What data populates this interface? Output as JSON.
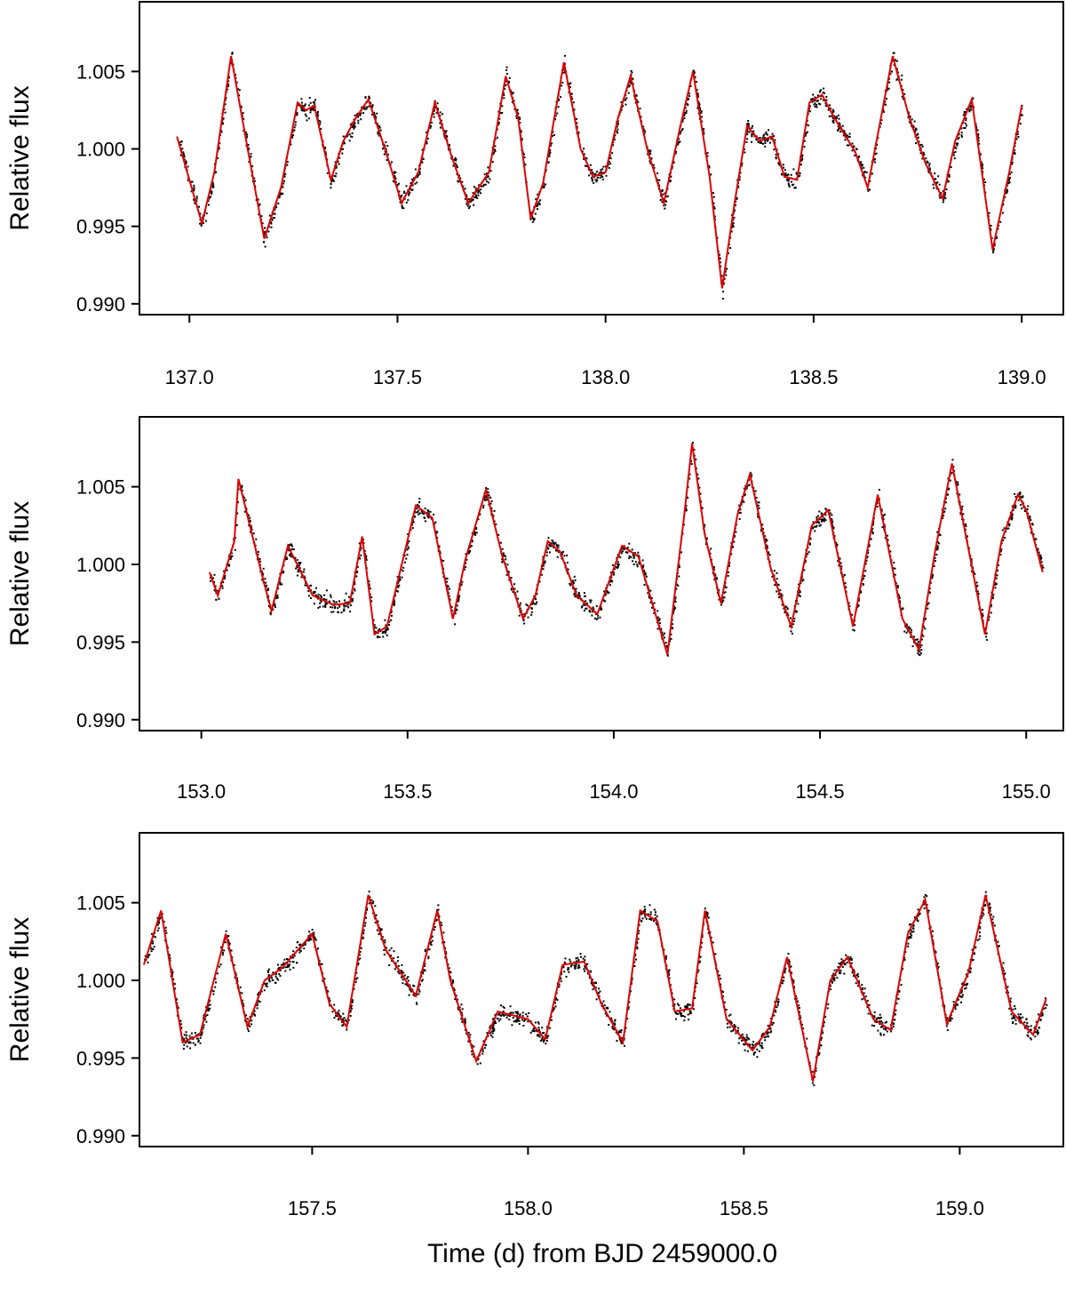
{
  "figure": {
    "xlabel": "Time (d) from BJD 2459000.0",
    "colors": {
      "points": "#000000",
      "model": "#e00000",
      "frame": "#000000"
    }
  },
  "chart_data": [
    {
      "type": "line",
      "ylabel": "Relative flux",
      "xlim": [
        136.88,
        139.1
      ],
      "ylim": [
        0.9893,
        1.0095
      ],
      "xticks": [
        137.0,
        137.5,
        138.0,
        138.5,
        139.0
      ],
      "xtick_labels": [
        "137.0",
        "137.5",
        "138.0",
        "138.5",
        "139.0"
      ],
      "yticks": [
        0.99,
        0.995,
        1.0,
        1.005
      ],
      "ytick_labels": [
        "0.990",
        "0.995",
        "1.000",
        "1.005"
      ],
      "series": [
        {
          "kind": "model",
          "x": [
            136.97,
            137.0,
            137.03,
            137.06,
            137.1,
            137.14,
            137.18,
            137.22,
            137.26,
            137.28,
            137.3,
            137.34,
            137.37,
            137.4,
            137.43,
            137.47,
            137.51,
            137.55,
            137.59,
            137.63,
            137.67,
            137.72,
            137.76,
            137.79,
            137.82,
            137.85,
            137.9,
            137.94,
            137.97,
            138.0,
            138.03,
            138.06,
            138.1,
            138.14,
            138.18,
            138.21,
            138.25,
            138.28,
            138.31,
            138.34,
            138.37,
            138.4,
            138.43,
            138.46,
            138.49,
            138.52,
            138.55,
            138.6,
            138.63,
            138.69,
            138.73,
            138.77,
            138.81,
            138.84,
            138.88,
            138.93,
            138.97,
            139.0
          ],
          "y": [
            1.0008,
            0.998,
            0.9952,
            0.9985,
            1.006,
            1.0,
            0.9942,
            0.9975,
            1.003,
            1.0025,
            1.0028,
            0.998,
            1.0005,
            1.002,
            1.0032,
            1.0,
            0.9965,
            0.9985,
            1.003,
            0.9995,
            0.9965,
            0.9985,
            1.0047,
            1.002,
            0.9955,
            0.9978,
            1.0056,
            1.0,
            0.9982,
            0.9985,
            1.002,
            1.0047,
            1.0,
            0.9965,
            1.0015,
            1.005,
            0.9982,
            0.991,
            0.9965,
            1.0015,
            1.0005,
            1.0008,
            0.9982,
            0.998,
            1.003,
            1.0035,
            1.002,
            0.9998,
            0.9975,
            1.006,
            1.002,
            0.999,
            0.9968,
            1.0005,
            1.0032,
            0.9935,
            0.9985,
            1.0028
          ]
        }
      ]
    },
    {
      "type": "line",
      "ylabel": "Relative flux",
      "xlim": [
        152.85,
        155.09
      ],
      "ylim": [
        0.9893,
        1.0095
      ],
      "xticks": [
        153.0,
        153.5,
        154.0,
        154.5,
        155.0
      ],
      "xtick_labels": [
        "153.0",
        "153.5",
        "154.0",
        "154.5",
        "155.0"
      ],
      "yticks": [
        0.99,
        0.995,
        1.0,
        1.005
      ],
      "ytick_labels": [
        "0.990",
        "0.995",
        "1.000",
        "1.005"
      ],
      "series": [
        {
          "kind": "model",
          "x": [
            153.02,
            153.04,
            153.08,
            153.09,
            153.15,
            153.17,
            153.21,
            153.27,
            153.32,
            153.36,
            153.39,
            153.42,
            153.45,
            153.52,
            153.56,
            153.61,
            153.64,
            153.69,
            153.73,
            153.78,
            153.81,
            153.84,
            153.87,
            153.91,
            153.96,
            154.02,
            154.06,
            154.13,
            154.17,
            154.19,
            154.22,
            154.26,
            154.3,
            154.33,
            154.38,
            154.43,
            154.48,
            154.52,
            154.58,
            154.64,
            154.7,
            154.74,
            154.78,
            154.82,
            154.86,
            154.9,
            154.94,
            154.98,
            155.0,
            155.04
          ],
          "y": [
            0.9995,
            0.998,
            1.0015,
            1.0055,
            0.999,
            0.997,
            1.0012,
            0.998,
            0.9974,
            0.9975,
            1.0018,
            0.9955,
            0.996,
            1.0038,
            1.003,
            0.9965,
            1.0003,
            1.0048,
            1.0005,
            0.9965,
            0.998,
            1.0015,
            1.0008,
            0.998,
            0.9968,
            1.0012,
            1.0005,
            0.9942,
            1.003,
            1.0078,
            1.002,
            0.9975,
            1.0032,
            1.0058,
            0.9998,
            0.996,
            1.0025,
            1.0035,
            0.996,
            1.0045,
            0.9965,
            0.9945,
            1.001,
            1.0065,
            1.001,
            0.9955,
            1.0015,
            1.0045,
            1.0035,
            0.9995
          ]
        }
      ]
    },
    {
      "type": "line",
      "ylabel": "Relative flux",
      "xlim": [
        157.1,
        159.24
      ],
      "ylim": [
        0.9893,
        1.0095
      ],
      "xticks": [
        157.5,
        158.0,
        158.5,
        159.0
      ],
      "xtick_labels": [
        "157.5",
        "158.0",
        "158.5",
        "159.0"
      ],
      "yticks": [
        0.99,
        0.995,
        1.0,
        1.005
      ],
      "ytick_labels": [
        "0.990",
        "0.995",
        "1.000",
        "1.005"
      ],
      "series": [
        {
          "kind": "model",
          "x": [
            157.11,
            157.15,
            157.2,
            157.24,
            157.3,
            157.35,
            157.39,
            157.43,
            157.5,
            157.54,
            157.58,
            157.63,
            157.67,
            157.74,
            157.79,
            157.82,
            157.88,
            157.93,
            158.0,
            158.04,
            158.08,
            158.13,
            158.17,
            158.22,
            158.26,
            158.3,
            158.34,
            158.38,
            158.41,
            158.46,
            158.52,
            158.56,
            158.6,
            158.66,
            158.7,
            158.74,
            158.8,
            158.84,
            158.88,
            158.92,
            158.97,
            159.02,
            159.06,
            159.12,
            159.17,
            159.2
          ],
          "y": [
            1.001,
            1.0045,
            0.996,
            0.9965,
            1.003,
            0.997,
            1.0,
            1.0008,
            1.003,
            0.9985,
            0.997,
            1.0055,
            1.002,
            0.999,
            1.0045,
            1.0,
            0.9948,
            0.998,
            0.9975,
            0.9962,
            1.001,
            1.0012,
            0.9985,
            0.996,
            1.0045,
            1.0038,
            0.998,
            0.9982,
            1.0045,
            0.9975,
            0.9955,
            0.997,
            1.0015,
            0.9935,
            1.0,
            1.0015,
            0.9975,
            0.9968,
            1.003,
            1.0052,
            0.9972,
            1.0005,
            1.0055,
            0.998,
            0.9965,
            0.9988
          ]
        }
      ]
    }
  ]
}
